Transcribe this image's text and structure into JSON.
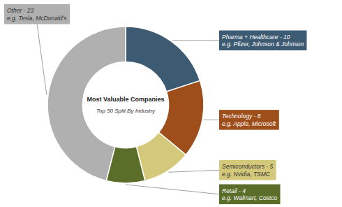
{
  "chart_data": {
    "type": "donut",
    "title": "Most Valuable Companies",
    "subtitle": "Top 50 Split By Industry",
    "categories": [
      "Pharma + Healthcare - 10\ne.g. Pfizer, Johnson & Johnson",
      "Technology - 8\ne.g. Apple, Microsoft",
      "Semiconductors - 5\ne.g. Nvidia, TSMC",
      "Retail - 4\ne.g. Walmart, Costco",
      "Other - 23\ne.g. Tesla, McDonald's"
    ],
    "values": [
      10,
      8,
      5,
      4,
      23
    ],
    "colors": [
      "#3d5a73",
      "#9e4e1a",
      "#d4c97a",
      "#5a6e2a",
      "#b0b0b0"
    ]
  }
}
